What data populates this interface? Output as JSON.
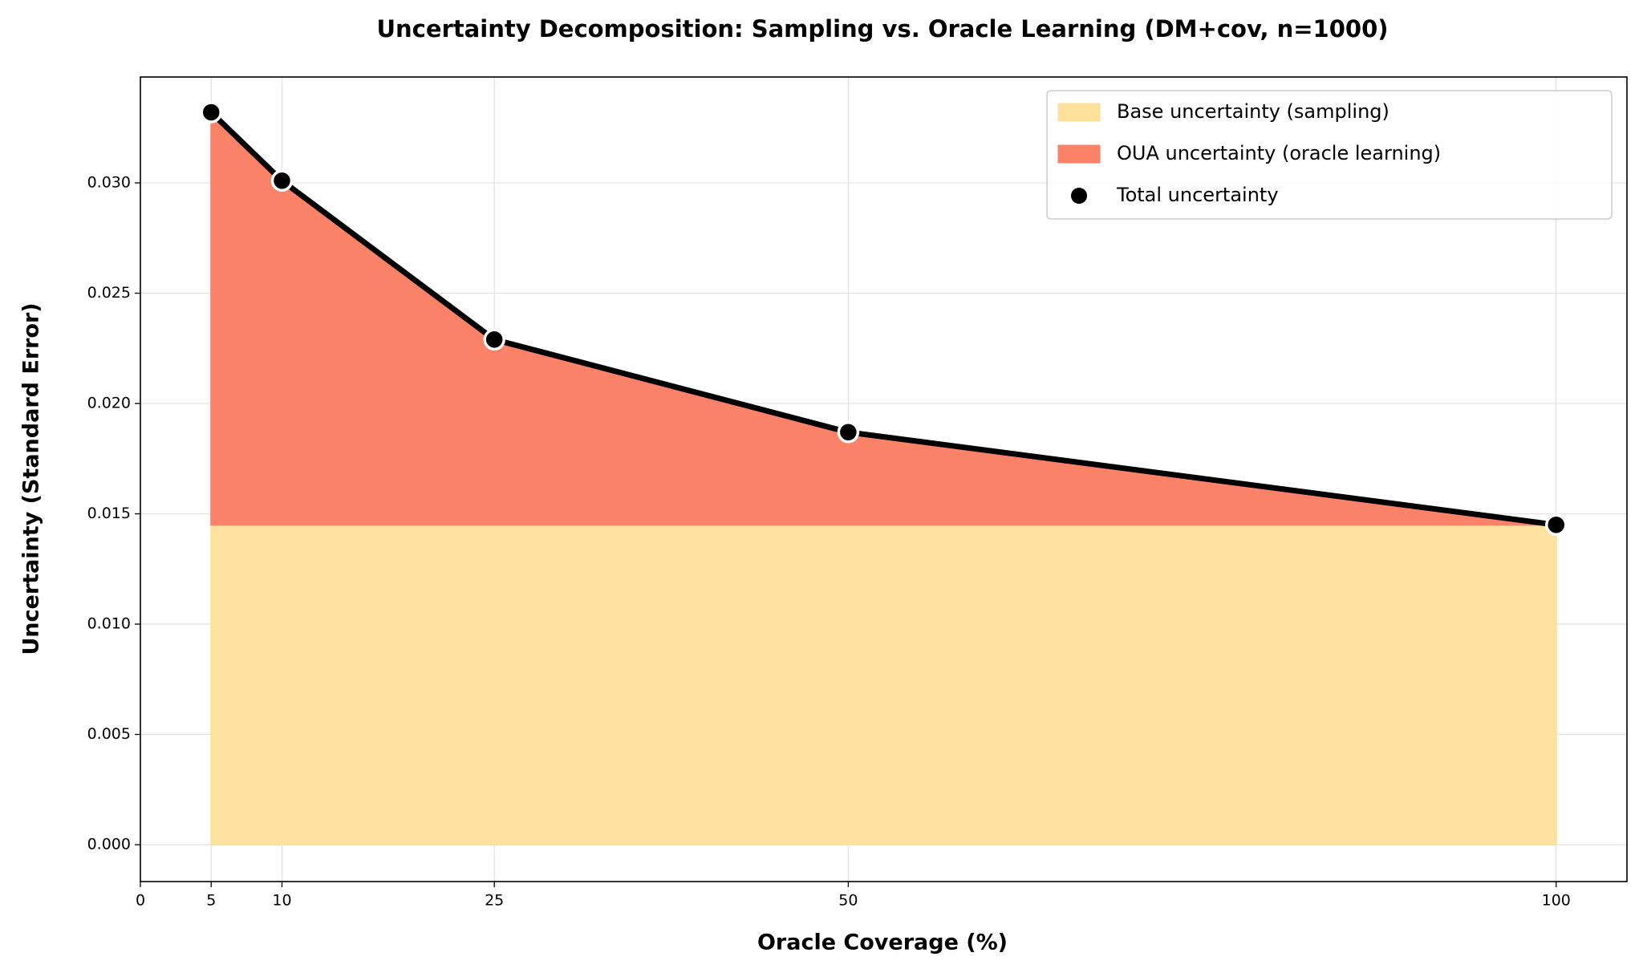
{
  "chart_data": {
    "type": "area",
    "title": "Uncertainty Decomposition: Sampling vs. Oracle Learning (DM+cov, n=1000)",
    "x_label": "Oracle Coverage (%)",
    "y_label": "Uncertainty (Standard Error)",
    "x": [
      5,
      10,
      25,
      50,
      100
    ],
    "series": [
      {
        "name": "Base uncertainty (sampling)",
        "color": "#fde19a",
        "stacked": true,
        "values": [
          0.0145,
          0.0145,
          0.0145,
          0.0145,
          0.0145
        ]
      },
      {
        "name": "OUA uncertainty (oracle learning)",
        "color": "#fa8268",
        "stacked": true,
        "values": [
          0.0187,
          0.0156,
          0.0084,
          0.0042,
          0.0
        ]
      },
      {
        "name": "Total uncertainty",
        "color": "#000000",
        "stacked": false,
        "values": [
          0.0332,
          0.0301,
          0.0229,
          0.0187,
          0.0145
        ]
      }
    ],
    "xlim": [
      0,
      105
    ],
    "xticks": [
      0,
      5,
      10,
      25,
      50,
      100
    ],
    "ylim": [
      -0.00167,
      0.0348
    ],
    "yticks": [
      {
        "value": 0,
        "label": "0.000"
      },
      {
        "value": 0.005,
        "label": "0.005"
      },
      {
        "value": 0.01,
        "label": "0.010"
      },
      {
        "value": 0.015,
        "label": "0.015"
      },
      {
        "value": 0.02,
        "label": "0.020"
      },
      {
        "value": 0.025,
        "label": "0.025"
      },
      {
        "value": 0.03,
        "label": "0.030"
      }
    ],
    "grid": true,
    "legend": "upper-right"
  }
}
